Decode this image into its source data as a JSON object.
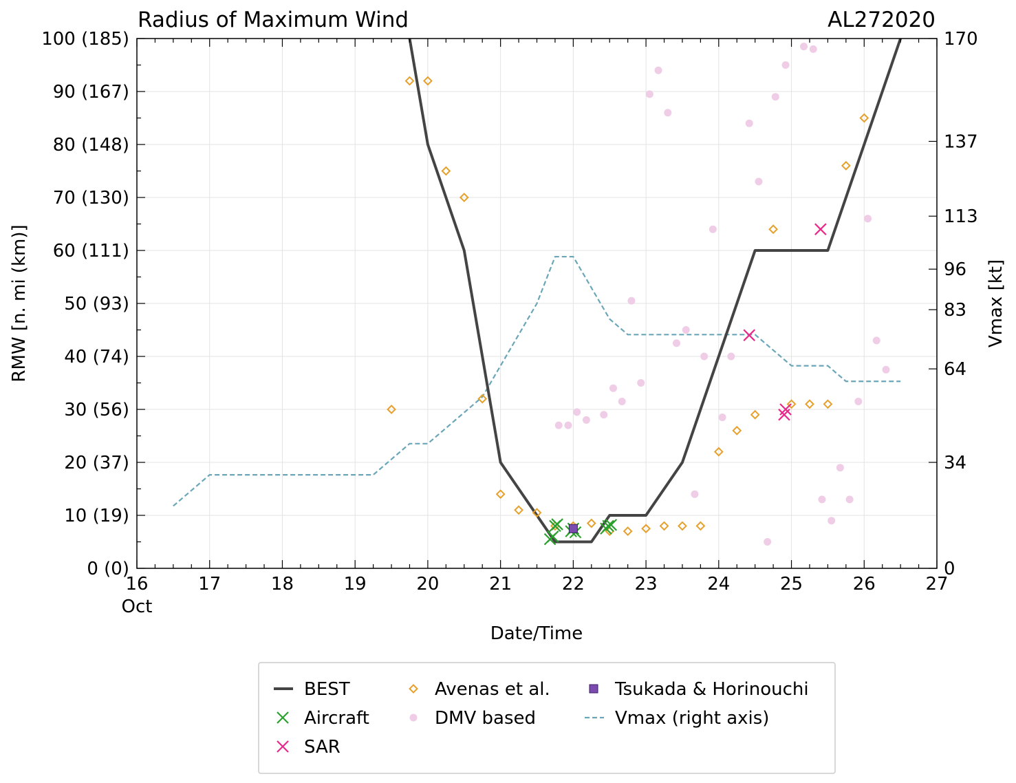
{
  "chart_data": {
    "type": "scatter",
    "title": "Radius of Maximum Wind",
    "storm_id": "AL272020",
    "xlabel": "Date/Time",
    "ylabel": "RMW [n. mi (km)]",
    "ylabel_right": "Vmax [kt]",
    "xlim": [
      16,
      27
    ],
    "ylim": [
      0,
      100
    ],
    "xticks": [
      16,
      17,
      18,
      19,
      20,
      21,
      22,
      23,
      24,
      25,
      26,
      27
    ],
    "xtick_labels": [
      "16",
      "17",
      "18",
      "19",
      "20",
      "21",
      "22",
      "23",
      "24",
      "25",
      "26",
      "27"
    ],
    "xtick_sublabel": "Oct",
    "yticks": [
      0,
      10,
      20,
      30,
      40,
      50,
      60,
      70,
      80,
      90,
      100
    ],
    "ytick_labels": [
      "0 (0)",
      "10 (19)",
      "20 (37)",
      "30 (56)",
      "40 (74)",
      "50 (93)",
      "60 (111)",
      "70 (130)",
      "80 (148)",
      "90 (167)",
      "100 (185)"
    ],
    "right_axis": {
      "ylim": [
        0,
        170
      ],
      "ticks": [
        0,
        34,
        64,
        83,
        96,
        113,
        137,
        170
      ],
      "tick_labels": [
        "0",
        "34",
        "64",
        "83",
        "96",
        "113",
        "137",
        "170"
      ]
    },
    "grid": true,
    "legend_position": "bottom",
    "series": [
      {
        "name": "BEST",
        "kind": "line",
        "color": "#444444",
        "x": [
          19.75,
          20.0,
          20.5,
          21.0,
          21.75,
          22.0,
          22.25,
          22.5,
          23.0,
          23.5,
          24.0,
          24.5,
          25.0,
          25.5,
          26.0,
          26.5
        ],
        "y": [
          100,
          80,
          60,
          20,
          5,
          5,
          5,
          10,
          10,
          20,
          40,
          60,
          60,
          60,
          80,
          100
        ]
      },
      {
        "name": "Aircraft",
        "kind": "marker",
        "marker": "x",
        "color": "#2ca02c",
        "x": [
          21.68,
          21.72,
          21.75,
          21.78,
          21.97,
          22.0,
          22.03,
          22.45,
          22.48,
          22.52
        ],
        "y": [
          5.5,
          6.0,
          8.0,
          8.3,
          7.0,
          7.5,
          6.8,
          7.5,
          8.0,
          8.2
        ]
      },
      {
        "name": "SAR",
        "kind": "marker",
        "marker": "x",
        "color": "#e7298a",
        "x": [
          24.42,
          24.9,
          24.92,
          25.4
        ],
        "y": [
          44,
          29,
          30,
          64
        ]
      },
      {
        "name": "Avenas et al.",
        "kind": "marker",
        "marker": "diamond",
        "color": "#e6a02c",
        "x": [
          19.5,
          19.75,
          20.0,
          20.25,
          20.5,
          20.75,
          21.0,
          21.25,
          21.5,
          21.75,
          22.0,
          22.25,
          22.5,
          22.75,
          23.0,
          23.25,
          23.5,
          23.75,
          24.0,
          24.25,
          24.5,
          24.75,
          25.0,
          25.25,
          25.5,
          25.75,
          26.0
        ],
        "y": [
          30,
          92,
          92,
          75,
          70,
          32,
          14,
          11,
          10.5,
          8,
          8,
          8.5,
          7,
          7,
          7.5,
          8,
          8,
          8,
          22,
          26,
          29,
          64,
          31,
          31,
          31,
          76,
          85
        ]
      },
      {
        "name": "DMV based",
        "kind": "marker",
        "marker": "circle",
        "color": "#f0cde6",
        "x": [
          21.8,
          21.93,
          22.05,
          22.18,
          22.42,
          22.55,
          22.67,
          22.8,
          22.93,
          23.05,
          23.17,
          23.3,
          23.42,
          23.55,
          23.67,
          23.8,
          23.92,
          24.05,
          24.17,
          24.42,
          24.55,
          24.67,
          24.78,
          24.92,
          25.17,
          25.3,
          25.42,
          25.55,
          25.67,
          25.8,
          25.92,
          26.05,
          26.17,
          26.3
        ],
        "y": [
          27,
          27,
          29.5,
          28,
          29,
          34,
          31.5,
          50.5,
          35,
          89.5,
          94,
          86,
          42.5,
          45,
          14,
          40,
          64,
          28.5,
          40,
          84,
          73,
          5,
          89,
          95,
          98.5,
          98,
          13,
          9,
          19,
          13,
          31.5,
          66,
          43,
          37.5
        ]
      },
      {
        "name": "Tsukada & Horinouchi",
        "kind": "marker",
        "marker": "square",
        "color": "#7b4bb0",
        "x": [
          22.0
        ],
        "y": [
          7.5
        ]
      },
      {
        "name": "Vmax (right axis)",
        "kind": "line",
        "style": "dashed",
        "axis": "right",
        "color": "#6aa6b8",
        "x": [
          16.5,
          17.0,
          17.5,
          18.0,
          18.5,
          19.0,
          19.25,
          19.75,
          20.0,
          20.5,
          20.75,
          21.0,
          21.5,
          21.75,
          22.0,
          22.5,
          22.75,
          23.0,
          23.5,
          24.0,
          24.5,
          25.0,
          25.5,
          25.75,
          26.0,
          26.5
        ],
        "y": [
          20,
          30,
          30,
          30,
          30,
          30,
          30,
          40,
          40,
          50,
          55,
          65,
          85,
          100,
          100,
          80,
          75,
          75,
          75,
          75,
          75,
          65,
          65,
          60,
          60,
          60
        ]
      }
    ],
    "legend": [
      {
        "label": "BEST",
        "series": "BEST"
      },
      {
        "label": "Avenas et al.",
        "series": "Avenas et al."
      },
      {
        "label": "Tsukada & Horinouchi",
        "series": "Tsukada & Horinouchi"
      },
      {
        "label": "Aircraft",
        "series": "Aircraft"
      },
      {
        "label": "DMV based",
        "series": "DMV based"
      },
      {
        "label": "Vmax (right axis)",
        "series": "Vmax (right axis)"
      },
      {
        "label": "SAR",
        "series": "SAR"
      }
    ]
  }
}
